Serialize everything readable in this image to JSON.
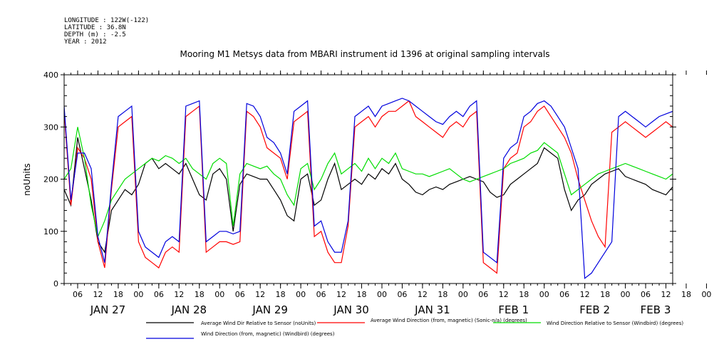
{
  "header": {
    "lines": [
      "LONGITUDE : 122W(-122)",
      "LATITUDE : 36.8N",
      "DEPTH (m) : -2.5",
      "YEAR : 2012"
    ]
  },
  "chart_data": {
    "type": "line",
    "title": "Mooring M1 Metsys data from MBARI instrument id 1396 at original sampling intervals",
    "ylabel": "noUnits",
    "xlabel": "",
    "ylim": [
      0,
      400
    ],
    "xlim_hours": [
      -10,
      170
    ],
    "yticks": [
      "0",
      "100",
      "200",
      "300",
      "400"
    ],
    "hour_ticks": [
      "06",
      "12",
      "18",
      "00",
      "06",
      "12",
      "18",
      "00",
      "06",
      "12",
      "18",
      "00",
      "06",
      "12",
      "18",
      "00",
      "06",
      "12",
      "18",
      "00",
      "06",
      "12",
      "18",
      "00",
      "06",
      "12",
      "18",
      "00",
      "06",
      "12",
      "18",
      "00",
      "06",
      "12",
      "18",
      "00",
      "06"
    ],
    "day_labels": [
      {
        "label": "JAN 27",
        "hour": 0
      },
      {
        "label": "JAN 28",
        "hour": 24
      },
      {
        "label": "JAN 29",
        "hour": 48
      },
      {
        "label": "JAN 30",
        "hour": 72
      },
      {
        "label": "JAN 31",
        "hour": 96
      },
      {
        "label": "FEB  1",
        "hour": 120
      },
      {
        "label": "FEB  2",
        "hour": 144
      },
      {
        "label": "FEB 3",
        "hour": 162
      }
    ],
    "series": [
      {
        "name": "Average Wind Dir Relative to Sensor (noUnits)",
        "color": "#000000",
        "x": [
          -10,
          -8,
          -6,
          -4,
          -2,
          0,
          2,
          4,
          6,
          8,
          10,
          12,
          14,
          16,
          18,
          20,
          22,
          24,
          26,
          28,
          30,
          32,
          34,
          36,
          38,
          40,
          42,
          44,
          46,
          48,
          50,
          52,
          54,
          56,
          58,
          60,
          62,
          64,
          66,
          68,
          70,
          72,
          74,
          76,
          78,
          80,
          82,
          84,
          86,
          88,
          90,
          92,
          94,
          96,
          98,
          100,
          102,
          104,
          106,
          108,
          110,
          112,
          114,
          116,
          118,
          120,
          122,
          124,
          126,
          128,
          130,
          132,
          134,
          136,
          138,
          140,
          142,
          144,
          146,
          148,
          150,
          152,
          154,
          156,
          158,
          160,
          162,
          164,
          166,
          168,
          170
        ],
        "y": [
          180,
          150,
          280,
          220,
          160,
          80,
          60,
          140,
          160,
          180,
          170,
          190,
          230,
          240,
          220,
          230,
          220,
          210,
          230,
          200,
          170,
          160,
          210,
          220,
          200,
          100,
          190,
          210,
          205,
          200,
          200,
          180,
          160,
          130,
          120,
          200,
          210,
          150,
          160,
          200,
          230,
          180,
          190,
          200,
          190,
          210,
          200,
          220,
          210,
          230,
          200,
          190,
          175,
          170,
          180,
          185,
          180,
          190,
          195,
          200,
          205,
          200,
          195,
          175,
          165,
          170,
          190,
          200,
          210,
          220,
          230,
          260,
          250,
          240,
          180,
          140,
          160,
          170,
          190,
          200,
          210,
          215,
          220,
          205,
          200,
          195,
          190,
          180,
          175,
          170,
          185
        ]
      },
      {
        "name": "Average Wind Direction (from, magnetic) (Sonic-n/a) (degrees)",
        "color": "#ff0000",
        "x": [
          -10,
          -8,
          -6,
          -4,
          -2,
          0,
          2,
          4,
          6,
          8,
          10,
          12,
          14,
          16,
          18,
          20,
          22,
          24,
          26,
          28,
          30,
          32,
          34,
          36,
          38,
          40,
          42,
          44,
          46,
          48,
          50,
          52,
          54,
          56,
          58,
          60,
          62,
          64,
          66,
          68,
          70,
          72,
          74,
          76,
          78,
          80,
          82,
          84,
          86,
          88,
          90,
          92,
          94,
          96,
          98,
          100,
          102,
          104,
          106,
          108,
          110,
          112,
          114,
          116,
          118,
          120,
          122,
          124,
          126,
          128,
          130,
          132,
          134,
          136,
          138,
          140,
          142,
          144,
          146,
          148,
          150,
          152,
          154,
          156,
          158,
          160,
          162,
          164,
          166,
          168,
          170
        ],
        "y": [
          330,
          150,
          260,
          240,
          200,
          80,
          30,
          180,
          300,
          310,
          320,
          80,
          50,
          40,
          30,
          60,
          70,
          60,
          320,
          330,
          340,
          60,
          70,
          80,
          80,
          75,
          80,
          330,
          320,
          300,
          260,
          250,
          240,
          200,
          310,
          320,
          330,
          90,
          100,
          60,
          40,
          40,
          110,
          300,
          310,
          320,
          300,
          320,
          330,
          330,
          340,
          350,
          320,
          310,
          300,
          290,
          280,
          300,
          310,
          300,
          320,
          330,
          40,
          30,
          20,
          220,
          240,
          250,
          300,
          310,
          330,
          340,
          320,
          300,
          280,
          250,
          200,
          160,
          120,
          90,
          70,
          290,
          300,
          310,
          300,
          290,
          280,
          290,
          300,
          310,
          300
        ]
      },
      {
        "name": "Wind Direction Relative to Sensor (Windbird) (degrees)",
        "color": "#00dd00",
        "x": [
          -10,
          -8,
          -6,
          -4,
          -2,
          0,
          2,
          4,
          6,
          8,
          10,
          12,
          14,
          16,
          18,
          20,
          22,
          24,
          26,
          28,
          30,
          32,
          34,
          36,
          38,
          40,
          42,
          44,
          46,
          48,
          50,
          52,
          54,
          56,
          58,
          60,
          62,
          64,
          66,
          68,
          70,
          72,
          74,
          76,
          78,
          80,
          82,
          84,
          86,
          88,
          90,
          92,
          94,
          96,
          98,
          100,
          102,
          104,
          106,
          108,
          110,
          112,
          114,
          116,
          118,
          120,
          122,
          124,
          126,
          128,
          130,
          132,
          134,
          136,
          138,
          140,
          142,
          144,
          146,
          148,
          150,
          152,
          154,
          156,
          158,
          160,
          162,
          164,
          166,
          168,
          170
        ],
        "y": [
          200,
          220,
          300,
          240,
          150,
          90,
          120,
          160,
          180,
          200,
          210,
          220,
          230,
          240,
          235,
          245,
          240,
          230,
          240,
          220,
          210,
          200,
          230,
          240,
          230,
          110,
          210,
          230,
          225,
          220,
          225,
          210,
          200,
          170,
          150,
          220,
          230,
          180,
          200,
          230,
          250,
          210,
          220,
          230,
          215,
          240,
          220,
          240,
          230,
          250,
          220,
          215,
          210,
          210,
          205,
          210,
          215,
          220,
          210,
          200,
          195,
          200,
          205,
          210,
          215,
          220,
          230,
          235,
          240,
          250,
          255,
          270,
          260,
          250,
          210,
          170,
          180,
          190,
          200,
          210,
          215,
          220,
          225,
          230,
          225,
          220,
          215,
          210,
          205,
          200,
          210
        ]
      },
      {
        "name": "Wind Direction (from, magnetic) (Windbird) (degrees)",
        "color": "#0000dd",
        "x": [
          -10,
          -8,
          -6,
          -4,
          -2,
          0,
          2,
          4,
          6,
          8,
          10,
          12,
          14,
          16,
          18,
          20,
          22,
          24,
          26,
          28,
          30,
          32,
          34,
          36,
          38,
          40,
          42,
          44,
          46,
          48,
          50,
          52,
          54,
          56,
          58,
          60,
          62,
          64,
          66,
          68,
          70,
          72,
          74,
          76,
          78,
          80,
          82,
          84,
          86,
          88,
          90,
          92,
          94,
          96,
          98,
          100,
          102,
          104,
          106,
          108,
          110,
          112,
          114,
          116,
          118,
          120,
          122,
          124,
          126,
          128,
          130,
          132,
          134,
          136,
          138,
          140,
          142,
          144,
          146,
          148,
          150,
          152,
          154,
          156,
          158,
          160,
          162,
          164,
          166,
          168,
          170
        ],
        "y": [
          340,
          160,
          250,
          250,
          220,
          90,
          40,
          190,
          320,
          330,
          340,
          100,
          70,
          60,
          50,
          80,
          90,
          80,
          340,
          345,
          350,
          80,
          90,
          100,
          100,
          95,
          100,
          345,
          340,
          320,
          280,
          270,
          250,
          210,
          330,
          340,
          350,
          110,
          120,
          80,
          60,
          60,
          120,
          320,
          330,
          340,
          320,
          340,
          345,
          350,
          355,
          350,
          340,
          330,
          320,
          310,
          305,
          320,
          330,
          320,
          340,
          350,
          60,
          50,
          40,
          240,
          260,
          270,
          320,
          330,
          345,
          350,
          340,
          320,
          300,
          260,
          220,
          10,
          20,
          40,
          60,
          80,
          320,
          330,
          320,
          310,
          300,
          310,
          320,
          325,
          330
        ]
      }
    ]
  }
}
